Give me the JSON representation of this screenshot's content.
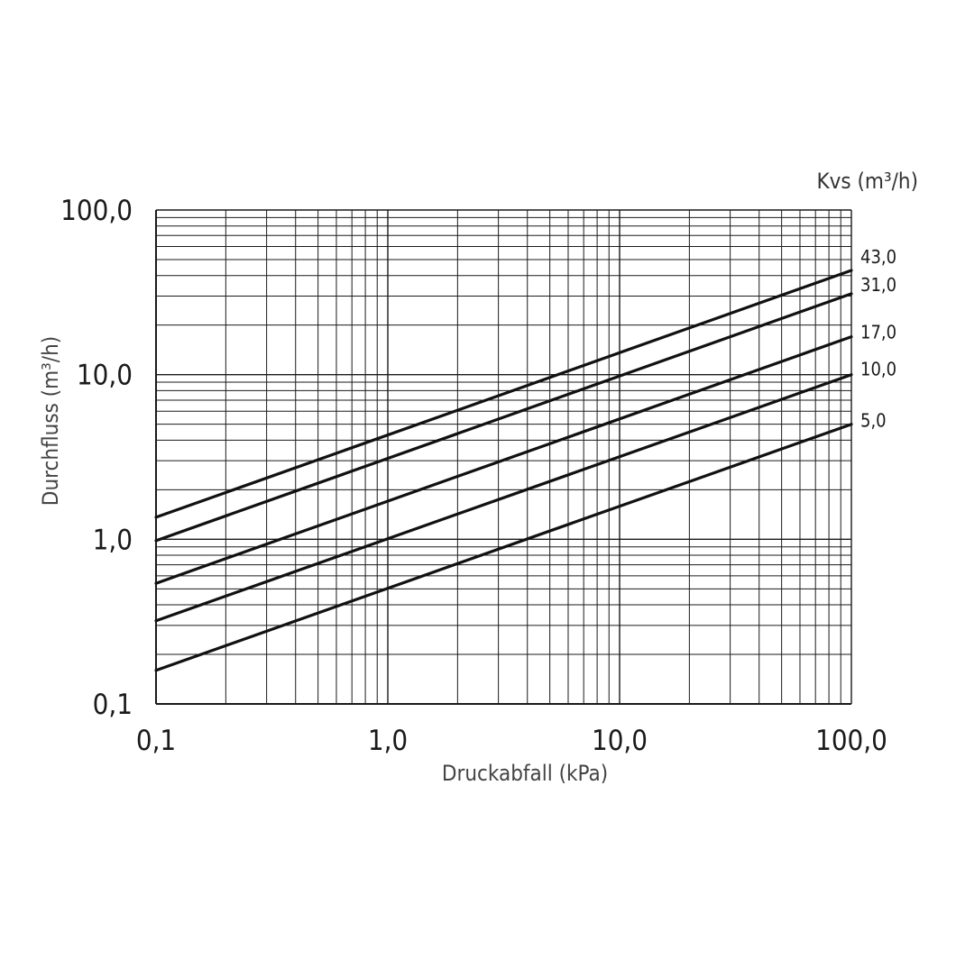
{
  "chart_data": {
    "type": "line",
    "xscale": "log",
    "yscale": "log",
    "xlabel": "Druckabfall (kPa)",
    "ylabel": "Durchfluss (m³/h)",
    "legend_title": "Kvs (m³/h)",
    "xlim": [
      0.1,
      100
    ],
    "ylim": [
      0.1,
      100
    ],
    "x_ticks": [
      {
        "value": 0.1,
        "label": "0,1"
      },
      {
        "value": 1,
        "label": "1,0"
      },
      {
        "value": 10,
        "label": "10,0"
      },
      {
        "value": 100,
        "label": "100,0"
      }
    ],
    "y_ticks": [
      {
        "value": 0.1,
        "label": "0,1"
      },
      {
        "value": 1,
        "label": "1,0"
      },
      {
        "value": 10,
        "label": "10,0"
      },
      {
        "value": 100,
        "label": "100,0"
      }
    ],
    "grid": true,
    "series": [
      {
        "name": "43,0",
        "kvs": 43,
        "x": [
          0.1,
          100
        ],
        "y": [
          1.36,
          43.0
        ]
      },
      {
        "name": "31,0",
        "kvs": 31,
        "x": [
          0.1,
          100
        ],
        "y": [
          0.98,
          31.0
        ]
      },
      {
        "name": "17,0",
        "kvs": 17,
        "x": [
          0.1,
          100
        ],
        "y": [
          0.54,
          17.0
        ]
      },
      {
        "name": "10,0",
        "kvs": 10,
        "x": [
          0.1,
          100
        ],
        "y": [
          0.32,
          10.0
        ]
      },
      {
        "name": "5,0",
        "kvs": 5,
        "x": [
          0.1,
          100
        ],
        "y": [
          0.16,
          5.0
        ]
      }
    ]
  }
}
